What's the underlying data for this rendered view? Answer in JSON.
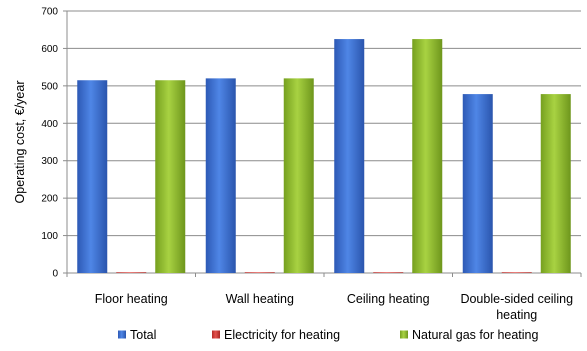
{
  "chart_data": {
    "type": "bar",
    "title": "",
    "xlabel": "",
    "ylabel": "Operating cost, €/year",
    "ylim": [
      0,
      700
    ],
    "yticks": [
      0,
      100,
      200,
      300,
      400,
      500,
      600,
      700
    ],
    "grid": "horizontal",
    "legend_position": "bottom",
    "categories": [
      [
        "Floor heating"
      ],
      [
        "Wall heating"
      ],
      [
        "Ceiling heating"
      ],
      [
        "Double-sided ceiling",
        "heating"
      ]
    ],
    "series": [
      {
        "name": "Total",
        "color": "#3a6fd0",
        "values": [
          515,
          520,
          625,
          478
        ]
      },
      {
        "name": "Electricity for heating",
        "color": "#d43a36",
        "values": [
          2,
          2,
          2,
          2
        ]
      },
      {
        "name": "Natural gas for heating",
        "color": "#8fbd2e",
        "values": [
          515,
          520,
          625,
          478
        ]
      }
    ]
  }
}
